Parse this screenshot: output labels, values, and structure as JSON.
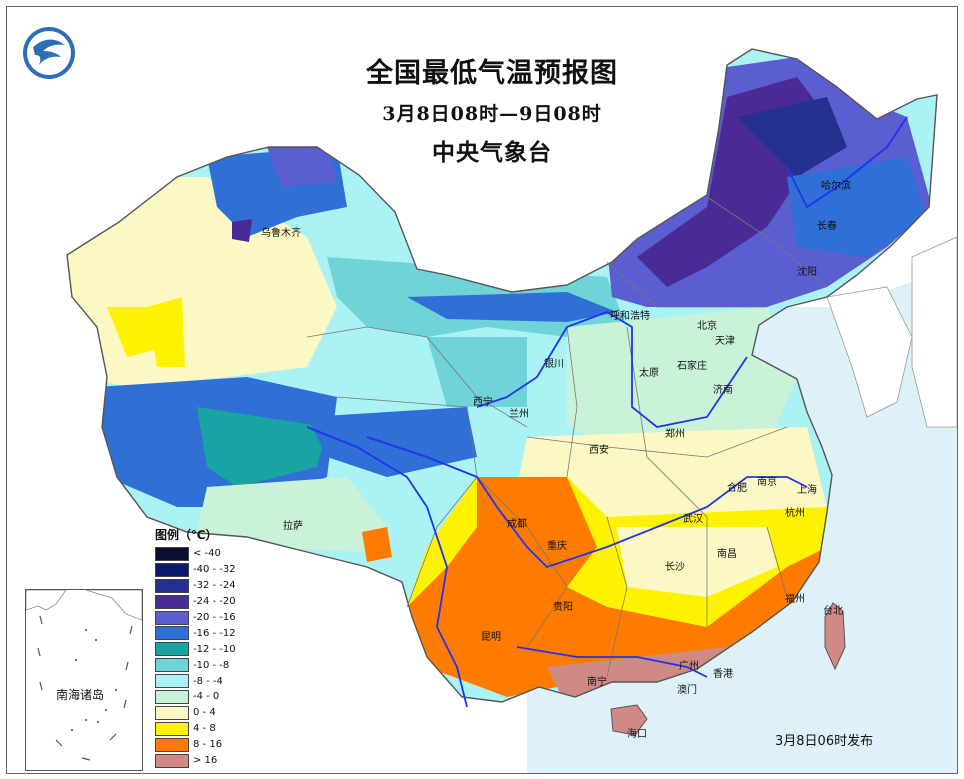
{
  "title": "全国最低气温预报图",
  "period": "3月8日08时—9日08时",
  "issuer": "中央气象台",
  "issue_time": "3月8日06时发布",
  "inset_label": "南海诸岛",
  "legend": {
    "title": "图例（℃）",
    "items": [
      {
        "label": "< -40",
        "color": "#0b1030"
      },
      {
        "label": "-40 - -32",
        "color": "#0d1a6b"
      },
      {
        "label": "-32 - -24",
        "color": "#24318f"
      },
      {
        "label": "-24 - -20",
        "color": "#4a2a95"
      },
      {
        "label": "-20 - -16",
        "color": "#5b5ed0"
      },
      {
        "label": "-16 - -12",
        "color": "#2f6fd6"
      },
      {
        "label": "-12 - -10",
        "color": "#1aa3a3"
      },
      {
        "label": "-10 - -8",
        "color": "#6fd3d8"
      },
      {
        "label": "-8 - -4",
        "color": "#aaf2f4"
      },
      {
        "label": "-4 - 0",
        "color": "#c9f2d9"
      },
      {
        "label": "0 - 4",
        "color": "#fbf8c4"
      },
      {
        "label": "4 - 8",
        "color": "#fff200"
      },
      {
        "label": "8 - 16",
        "color": "#ff7b00"
      },
      {
        "label": "> 16",
        "color": "#cf8a85"
      }
    ]
  },
  "cities": [
    {
      "name": "乌鲁木齐"
    },
    {
      "name": "哈尔滨"
    },
    {
      "name": "长春"
    },
    {
      "name": "沈阳"
    },
    {
      "name": "呼和浩特"
    },
    {
      "name": "北京"
    },
    {
      "name": "天津"
    },
    {
      "name": "石家庄"
    },
    {
      "name": "太原"
    },
    {
      "name": "银川"
    },
    {
      "name": "济南"
    },
    {
      "name": "西宁"
    },
    {
      "name": "兰州"
    },
    {
      "name": "郑州"
    },
    {
      "name": "西安"
    },
    {
      "name": "合肥"
    },
    {
      "name": "南京"
    },
    {
      "name": "上海"
    },
    {
      "name": "杭州"
    },
    {
      "name": "拉萨"
    },
    {
      "name": "成都"
    },
    {
      "name": "武汉"
    },
    {
      "name": "重庆"
    },
    {
      "name": "长沙"
    },
    {
      "name": "南昌"
    },
    {
      "name": "福州"
    },
    {
      "name": "台北"
    },
    {
      "name": "贵阳"
    },
    {
      "name": "昆明"
    },
    {
      "name": "南宁"
    },
    {
      "name": "广州"
    },
    {
      "name": "香港"
    },
    {
      "name": "澳门"
    },
    {
      "name": "海口"
    }
  ],
  "colors": {
    "sea": "#dff1f8",
    "river": "#2233ee",
    "border": "#777777"
  }
}
